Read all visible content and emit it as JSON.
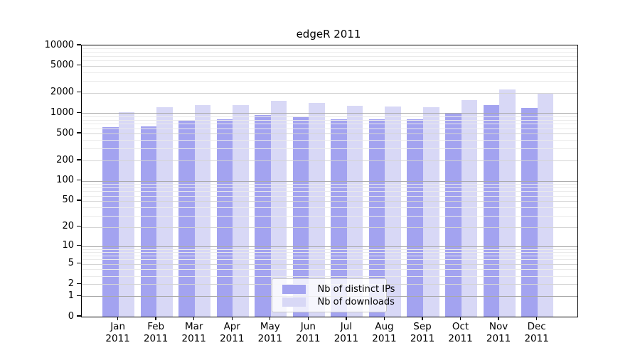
{
  "chart_data": {
    "type": "bar",
    "title": "edgeR 2011",
    "categories": [
      "Jan",
      "Feb",
      "Mar",
      "Apr",
      "May",
      "Jun",
      "Jul",
      "Aug",
      "Sep",
      "Oct",
      "Nov",
      "Dec"
    ],
    "category_year_label": "2011",
    "series": [
      {
        "name": "Nb of distinct IPs",
        "color": "#a3a3f0",
        "values": [
          620,
          640,
          790,
          810,
          950,
          900,
          815,
          805,
          820,
          980,
          1320,
          1200
        ]
      },
      {
        "name": "Nb of downloads",
        "color": "#d8d8f6",
        "values": [
          1030,
          1240,
          1330,
          1320,
          1540,
          1420,
          1290,
          1270,
          1230,
          1560,
          2240,
          1950
        ]
      }
    ],
    "y_scale": "log1p",
    "ylim": [
      0,
      10000
    ],
    "y_ticks": [
      0,
      1,
      2,
      5,
      10,
      20,
      50,
      100,
      200,
      500,
      1000,
      2000,
      5000,
      10000
    ],
    "grid": {
      "visible": true,
      "drawn_over_bars": true,
      "major_values": [
        1,
        10,
        100,
        1000
      ]
    },
    "legend": {
      "position": "inside-bottom-center"
    }
  },
  "colors": {
    "bar_distinct_ips": "#a3a3f0",
    "bar_downloads": "#d8d8f6",
    "grid_major": "#a9a9a9",
    "grid_mid": "#d4d4d4",
    "grid_minor": "#eaeaea",
    "axis": "#000000",
    "legend_border": "#c9c9c9",
    "text": "#000000"
  }
}
